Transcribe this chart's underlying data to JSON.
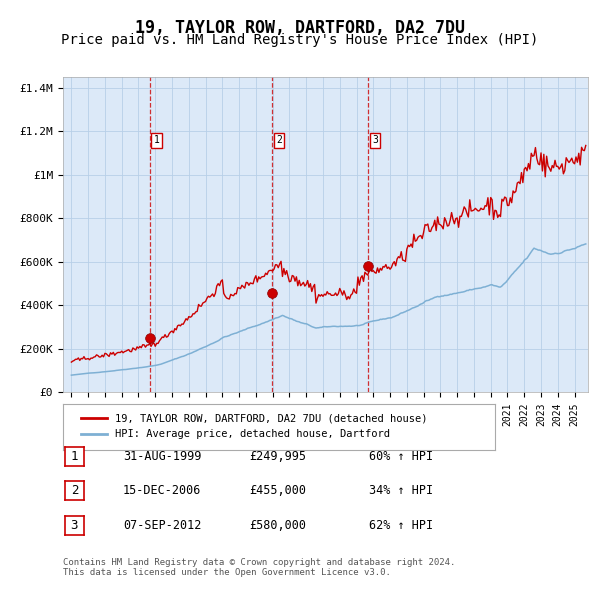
{
  "title": "19, TAYLOR ROW, DARTFORD, DA2 7DU",
  "subtitle": "Price paid vs. HM Land Registry's House Price Index (HPI)",
  "title_fontsize": 12,
  "subtitle_fontsize": 10,
  "background_color": "#dce9f8",
  "line_color_hpi": "#7eb0d4",
  "line_color_price": "#cc0000",
  "purchases": [
    {
      "date_year": 1999.67,
      "price": 249995,
      "label": "1"
    },
    {
      "date_year": 2006.96,
      "price": 455000,
      "label": "2"
    },
    {
      "date_year": 2012.68,
      "price": 580000,
      "label": "3"
    }
  ],
  "ylim": [
    0,
    1450000
  ],
  "xlim_start": 1994.5,
  "xlim_end": 2025.8,
  "yticks": [
    0,
    200000,
    400000,
    600000,
    800000,
    1000000,
    1200000,
    1400000
  ],
  "ytick_labels": [
    "£0",
    "£200K",
    "£400K",
    "£600K",
    "£800K",
    "£1M",
    "£1.2M",
    "£1.4M"
  ],
  "legend_label_price": "19, TAYLOR ROW, DARTFORD, DA2 7DU (detached house)",
  "legend_label_hpi": "HPI: Average price, detached house, Dartford",
  "table_entries": [
    {
      "num": "1",
      "date": "31-AUG-1999",
      "price": "£249,995",
      "pct": "60% ↑ HPI"
    },
    {
      "num": "2",
      "date": "15-DEC-2006",
      "price": "£455,000",
      "pct": "34% ↑ HPI"
    },
    {
      "num": "3",
      "date": "07-SEP-2012",
      "price": "£580,000",
      "pct": "62% ↑ HPI"
    }
  ],
  "footer": "Contains HM Land Registry data © Crown copyright and database right 2024.\nThis data is licensed under the Open Government Licence v3.0."
}
